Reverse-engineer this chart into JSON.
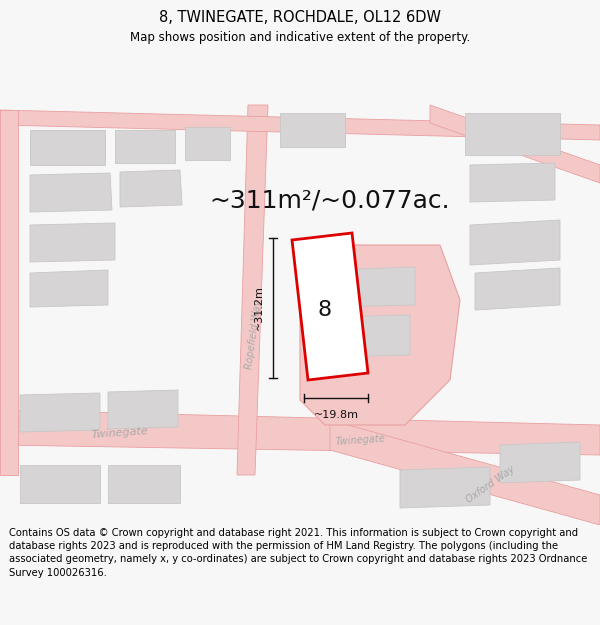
{
  "title": "8, TWINEGATE, ROCHDALE, OL12 6DW",
  "subtitle": "Map shows position and indicative extent of the property.",
  "area_text": "~311m²/~0.077ac.",
  "dim_width": "~19.8m",
  "dim_height": "~31.2m",
  "label_number": "8",
  "footer": "Contains OS data © Crown copyright and database right 2021. This information is subject to Crown copyright and database rights 2023 and is reproduced with the permission of HM Land Registry. The polygons (including the associated geometry, namely x, y co-ordinates) are subject to Crown copyright and database rights 2023 Ordnance Survey 100026316.",
  "bg_color": "#f7f7f7",
  "map_bg": "#f2f0f0",
  "road_color": "#f5c8c8",
  "road_stroke": "#e8a0a0",
  "building_fill": "#d6d4d4",
  "building_stroke": "#c8c6c6",
  "plot_color": "#dd0000",
  "plot_fill": "#ffffff",
  "dim_color": "#111111",
  "street_label_color": "#aaaaaa",
  "title_fontsize": 10.5,
  "subtitle_fontsize": 8.5,
  "area_fontsize": 18,
  "number_fontsize": 16,
  "footer_fontsize": 7.2,
  "road_lw": 0.6,
  "plot_lw": 2.0
}
